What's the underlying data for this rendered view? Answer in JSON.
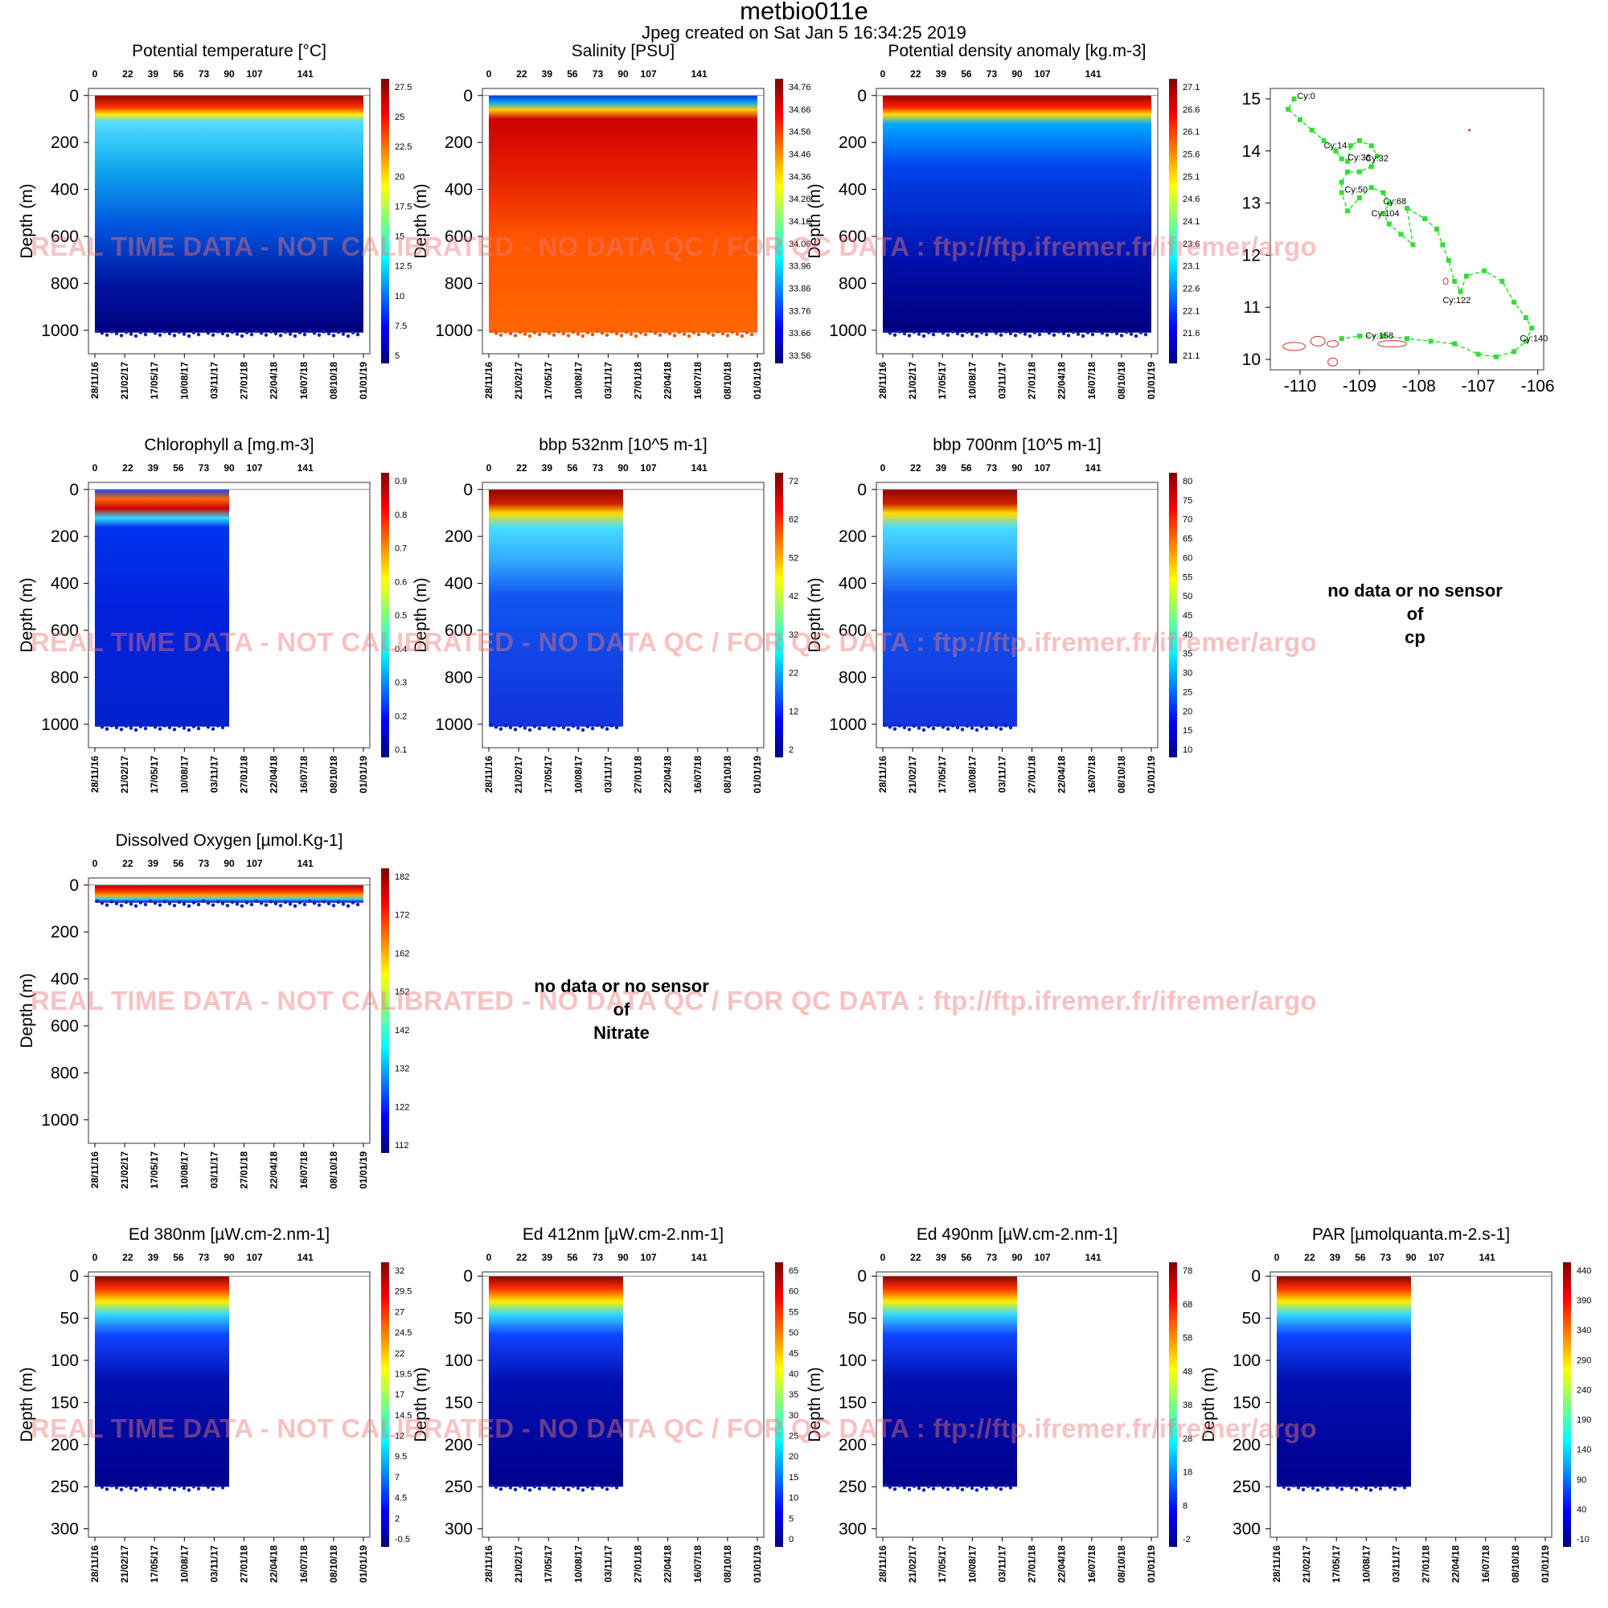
{
  "header": {
    "title": "metbio011e",
    "subtitle": "Jpeg created on  Sat Jan  5 16:34:25 2019"
  },
  "watermark": "REAL TIME DATA - NOT CALIBRATED - NO DATA QC   /  FOR QC DATA : ftp://ftp.ifremer.fr/ifremer/argo",
  "nodata_panels": [
    {
      "text": "no data or no sensor\nof\ncp"
    },
    {
      "text": "no data or no sensor\nof\nNitrate"
    }
  ],
  "colors": {
    "jet": [
      "#00007f",
      "#0000ff",
      "#007fff",
      "#00ffff",
      "#7fff7f",
      "#ffff00",
      "#ff7f00",
      "#ff0000",
      "#7f0000"
    ],
    "track": "#33dd33",
    "coast": "#cc3333",
    "watermark": "#ee7878"
  },
  "chart_data": [
    {
      "type": "heatmap",
      "title": "Potential temperature [°C]",
      "ylabel": "Depth (m)",
      "yticks": [
        "0",
        "200",
        "400",
        "600",
        "800",
        "1000"
      ],
      "ylim": [
        1100,
        -30
      ],
      "top_ticks": [
        "0",
        "22",
        "39",
        "56",
        "73",
        "90",
        "107",
        "141"
      ],
      "date_ticks": [
        "28/11/16",
        "21/02/17",
        "17/05/17",
        "10/08/17",
        "03/11/17",
        "27/01/18",
        "22/04/18",
        "16/07/18",
        "08/10/18",
        "01/01/19"
      ],
      "colorbar": [
        "27.5",
        "25",
        "22.5",
        "20",
        "17.5",
        "15",
        "12.5",
        "10",
        "7.5",
        "5"
      ],
      "data_coverage": 1.0,
      "max_depth": 1010,
      "surface_layer_depth": 80
    },
    {
      "type": "heatmap",
      "title": "Salinity [PSU]",
      "ylabel": "Depth (m)",
      "yticks": [
        "0",
        "200",
        "400",
        "600",
        "800",
        "1000"
      ],
      "ylim": [
        1100,
        -30
      ],
      "top_ticks": [
        "0",
        "22",
        "39",
        "56",
        "73",
        "90",
        "107",
        "141"
      ],
      "date_ticks": [
        "28/11/16",
        "21/02/17",
        "17/05/17",
        "10/08/17",
        "03/11/17",
        "27/01/18",
        "22/04/18",
        "16/07/18",
        "08/10/18",
        "01/01/19"
      ],
      "colorbar": [
        "34.76",
        "34.66",
        "34.56",
        "34.46",
        "34.36",
        "34.26",
        "34.16",
        "34.06",
        "33.96",
        "33.86",
        "33.76",
        "33.66",
        "33.56"
      ],
      "data_coverage": 1.0,
      "max_depth": 1010,
      "surface_layer_depth": 60
    },
    {
      "type": "heatmap",
      "title": "Potential density anomaly [kg.m-3]",
      "ylabel": "Depth (m)",
      "yticks": [
        "0",
        "200",
        "400",
        "600",
        "800",
        "1000"
      ],
      "ylim": [
        1100,
        -30
      ],
      "top_ticks": [
        "0",
        "22",
        "39",
        "56",
        "73",
        "90",
        "107",
        "141"
      ],
      "date_ticks": [
        "28/11/16",
        "21/02/17",
        "17/05/17",
        "10/08/17",
        "03/11/17",
        "27/01/18",
        "22/04/18",
        "16/07/18",
        "08/10/18",
        "01/01/19"
      ],
      "colorbar": [
        "27.1",
        "26.6",
        "26.1",
        "25.6",
        "25.1",
        "24.6",
        "24.1",
        "23.6",
        "23.1",
        "22.6",
        "22.1",
        "21.6",
        "21.1"
      ],
      "data_coverage": 1.0,
      "max_depth": 1010,
      "surface_layer_depth": 70
    },
    {
      "type": "scatter",
      "title": "",
      "xlim": [
        -110.5,
        -105.9
      ],
      "ylim": [
        9.8,
        15.2
      ],
      "xticks": [
        "-110",
        "-109",
        "-108",
        "-107",
        "-106"
      ],
      "yticks": [
        "10",
        "11",
        "12",
        "13",
        "14",
        "15"
      ],
      "track": [
        [
          -110.1,
          15.0
        ],
        [
          -110.2,
          14.8
        ],
        [
          -110.0,
          14.6
        ],
        [
          -109.8,
          14.4
        ],
        [
          -109.6,
          14.2
        ],
        [
          -109.4,
          14.0
        ],
        [
          -109.3,
          13.85
        ],
        [
          -109.2,
          13.8
        ],
        [
          -109.15,
          14.1
        ],
        [
          -109.0,
          14.2
        ],
        [
          -108.8,
          14.1
        ],
        [
          -108.7,
          13.9
        ],
        [
          -108.8,
          13.7
        ],
        [
          -109.0,
          13.6
        ],
        [
          -109.2,
          13.6
        ],
        [
          -109.3,
          13.4
        ],
        [
          -109.3,
          13.2
        ],
        [
          -109.2,
          12.85
        ],
        [
          -109.0,
          13.1
        ],
        [
          -108.8,
          13.3
        ],
        [
          -108.6,
          13.2
        ],
        [
          -108.5,
          13.0
        ],
        [
          -108.6,
          12.8
        ],
        [
          -108.5,
          12.6
        ],
        [
          -108.3,
          12.4
        ],
        [
          -108.1,
          12.2
        ],
        [
          -108.2,
          12.9
        ],
        [
          -107.9,
          12.7
        ],
        [
          -107.7,
          12.5
        ],
        [
          -107.6,
          12.2
        ],
        [
          -107.5,
          11.9
        ],
        [
          -107.4,
          11.5
        ],
        [
          -107.3,
          11.3
        ],
        [
          -107.2,
          11.6
        ],
        [
          -106.9,
          11.7
        ],
        [
          -106.6,
          11.5
        ],
        [
          -106.4,
          11.1
        ],
        [
          -106.2,
          10.8
        ],
        [
          -106.1,
          10.6
        ],
        [
          -106.2,
          10.35
        ],
        [
          -106.4,
          10.15
        ],
        [
          -106.7,
          10.05
        ],
        [
          -107.0,
          10.1
        ],
        [
          -107.4,
          10.3
        ],
        [
          -107.8,
          10.35
        ],
        [
          -108.2,
          10.4
        ],
        [
          -108.6,
          10.45
        ],
        [
          -109.0,
          10.45
        ],
        [
          -109.3,
          10.4
        ]
      ],
      "labels": [
        {
          "text": "Cy:0",
          "lon": -110.05,
          "lat": 15.0
        },
        {
          "text": "Cy:14",
          "lon": -109.6,
          "lat": 14.05
        },
        {
          "text": "Cy:36",
          "lon": -109.2,
          "lat": 13.82
        },
        {
          "text": "Cy:32",
          "lon": -108.9,
          "lat": 13.8
        },
        {
          "text": "Cy:50",
          "lon": -109.25,
          "lat": 13.2
        },
        {
          "text": "Cy:68",
          "lon": -108.6,
          "lat": 12.98
        },
        {
          "text": "Cy:104",
          "lon": -108.8,
          "lat": 12.75
        },
        {
          "text": "Cy:122",
          "lon": -107.6,
          "lat": 11.08
        },
        {
          "text": "Cy:140",
          "lon": -106.3,
          "lat": 10.35
        },
        {
          "text": "Cy:158",
          "lon": -108.9,
          "lat": 10.4
        }
      ]
    },
    {
      "type": "heatmap",
      "title": "Chlorophyll a [mg.m-3]",
      "ylabel": "Depth (m)",
      "yticks": [
        "0",
        "200",
        "400",
        "600",
        "800",
        "1000"
      ],
      "ylim": [
        1100,
        -30
      ],
      "top_ticks": [
        "0",
        "22",
        "39",
        "56",
        "73",
        "90",
        "107",
        "141"
      ],
      "date_ticks": [
        "28/11/16",
        "21/02/17",
        "17/05/17",
        "10/08/17",
        "03/11/17",
        "27/01/18",
        "22/04/18",
        "16/07/18",
        "08/10/18",
        "01/01/19"
      ],
      "colorbar": [
        "0.9",
        "0.8",
        "0.7",
        "0.6",
        "0.5",
        "0.4",
        "0.3",
        "0.2",
        "0.1"
      ],
      "data_coverage": 0.5,
      "max_depth": 1010,
      "surface_layer_depth": 130
    },
    {
      "type": "heatmap",
      "title": "bbp 532nm [10^5 m-1]",
      "ylabel": "Depth (m)",
      "yticks": [
        "0",
        "200",
        "400",
        "600",
        "800",
        "1000"
      ],
      "ylim": [
        1100,
        -30
      ],
      "top_ticks": [
        "0",
        "22",
        "39",
        "56",
        "73",
        "90",
        "107",
        "141"
      ],
      "date_ticks": [
        "28/11/16",
        "21/02/17",
        "17/05/17",
        "10/08/17",
        "03/11/17",
        "27/01/18",
        "22/04/18",
        "16/07/18",
        "08/10/18",
        "01/01/19"
      ],
      "colorbar": [
        "72",
        "62",
        "52",
        "42",
        "32",
        "22",
        "12",
        "2"
      ],
      "data_coverage": 0.5,
      "max_depth": 1010,
      "surface_layer_depth": 90
    },
    {
      "type": "heatmap",
      "title": "bbp 700nm [10^5 m-1]",
      "ylabel": "Depth (m)",
      "yticks": [
        "0",
        "200",
        "400",
        "600",
        "800",
        "1000"
      ],
      "ylim": [
        1100,
        -30
      ],
      "top_ticks": [
        "0",
        "22",
        "39",
        "56",
        "73",
        "90",
        "107",
        "141"
      ],
      "date_ticks": [
        "28/11/16",
        "21/02/17",
        "17/05/17",
        "10/08/17",
        "03/11/17",
        "27/01/18",
        "22/04/18",
        "16/07/18",
        "08/10/18",
        "01/01/19"
      ],
      "colorbar": [
        "80",
        "75",
        "70",
        "65",
        "60",
        "55",
        "50",
        "45",
        "40",
        "35",
        "30",
        "25",
        "20",
        "15",
        "10"
      ],
      "data_coverage": 0.5,
      "max_depth": 1010,
      "surface_layer_depth": 90
    },
    {
      "type": "heatmap",
      "title": "Dissolved Oxygen [µmol.Kg-1]",
      "ylabel": "Depth (m)",
      "yticks": [
        "0",
        "200",
        "400",
        "600",
        "800",
        "1000"
      ],
      "ylim": [
        1100,
        -30
      ],
      "top_ticks": [
        "0",
        "22",
        "39",
        "56",
        "73",
        "90",
        "107",
        "141"
      ],
      "date_ticks": [
        "28/11/16",
        "21/02/17",
        "17/05/17",
        "10/08/17",
        "03/11/17",
        "27/01/18",
        "22/04/18",
        "16/07/18",
        "08/10/18",
        "01/01/19"
      ],
      "colorbar": [
        "182",
        "172",
        "162",
        "152",
        "142",
        "132",
        "122",
        "112"
      ],
      "data_coverage": 1.0,
      "max_depth": 75,
      "surface_layer_depth": 60
    },
    {
      "type": "heatmap",
      "title": "Ed 380nm [µW.cm-2.nm-1]",
      "ylabel": "Depth (m)",
      "yticks": [
        "0",
        "50",
        "100",
        "150",
        "200",
        "250",
        "300"
      ],
      "ylim": [
        310,
        -5
      ],
      "top_ticks": [
        "0",
        "22",
        "39",
        "56",
        "73",
        "90",
        "107",
        "141"
      ],
      "date_ticks": [
        "28/11/16",
        "21/02/17",
        "17/05/17",
        "10/08/17",
        "03/11/17",
        "27/01/18",
        "22/04/18",
        "16/07/18",
        "08/10/18",
        "01/01/19"
      ],
      "colorbar": [
        "32",
        "29.5",
        "27",
        "24.5",
        "22",
        "19.5",
        "17",
        "14.5",
        "12",
        "9.5",
        "7",
        "4.5",
        "2",
        "-0.5"
      ],
      "data_coverage": 0.5,
      "max_depth": 250,
      "surface_layer_depth": 25
    },
    {
      "type": "heatmap",
      "title": "Ed 412nm [µW.cm-2.nm-1]",
      "ylabel": "Depth (m)",
      "yticks": [
        "0",
        "50",
        "100",
        "150",
        "200",
        "250",
        "300"
      ],
      "ylim": [
        310,
        -5
      ],
      "top_ticks": [
        "0",
        "22",
        "39",
        "56",
        "73",
        "90",
        "107",
        "141"
      ],
      "date_ticks": [
        "28/11/16",
        "21/02/17",
        "17/05/17",
        "10/08/17",
        "03/11/17",
        "27/01/18",
        "22/04/18",
        "16/07/18",
        "08/10/18",
        "01/01/19"
      ],
      "colorbar": [
        "65",
        "60",
        "55",
        "50",
        "45",
        "40",
        "35",
        "30",
        "25",
        "20",
        "15",
        "10",
        "5",
        "0"
      ],
      "data_coverage": 0.5,
      "max_depth": 250,
      "surface_layer_depth": 25
    },
    {
      "type": "heatmap",
      "title": "Ed 490nm [µW.cm-2.nm-1]",
      "ylabel": "Depth (m)",
      "yticks": [
        "0",
        "50",
        "100",
        "150",
        "200",
        "250",
        "300"
      ],
      "ylim": [
        310,
        -5
      ],
      "top_ticks": [
        "0",
        "22",
        "39",
        "56",
        "73",
        "90",
        "107",
        "141"
      ],
      "date_ticks": [
        "28/11/16",
        "21/02/17",
        "17/05/17",
        "10/08/17",
        "03/11/17",
        "27/01/18",
        "22/04/18",
        "16/07/18",
        "08/10/18",
        "01/01/19"
      ],
      "colorbar": [
        "78",
        "68",
        "58",
        "48",
        "38",
        "28",
        "18",
        "8",
        "-2"
      ],
      "data_coverage": 0.5,
      "max_depth": 250,
      "surface_layer_depth": 30
    },
    {
      "type": "heatmap",
      "title": "PAR [µmolquanta.m-2.s-1]",
      "ylabel": "Depth (m)",
      "yticks": [
        "0",
        "50",
        "100",
        "150",
        "200",
        "250",
        "300"
      ],
      "ylim": [
        310,
        -5
      ],
      "top_ticks": [
        "0",
        "22",
        "39",
        "56",
        "73",
        "90",
        "107",
        "141"
      ],
      "date_ticks": [
        "28/11/16",
        "21/02/17",
        "17/05/17",
        "10/08/17",
        "03/11/17",
        "27/01/18",
        "22/04/18",
        "16/07/18",
        "08/10/18",
        "01/01/19"
      ],
      "colorbar": [
        "440",
        "390",
        "340",
        "290",
        "240",
        "190",
        "140",
        "90",
        "40",
        "-10"
      ],
      "data_coverage": 0.5,
      "max_depth": 250,
      "surface_layer_depth": 25
    }
  ]
}
